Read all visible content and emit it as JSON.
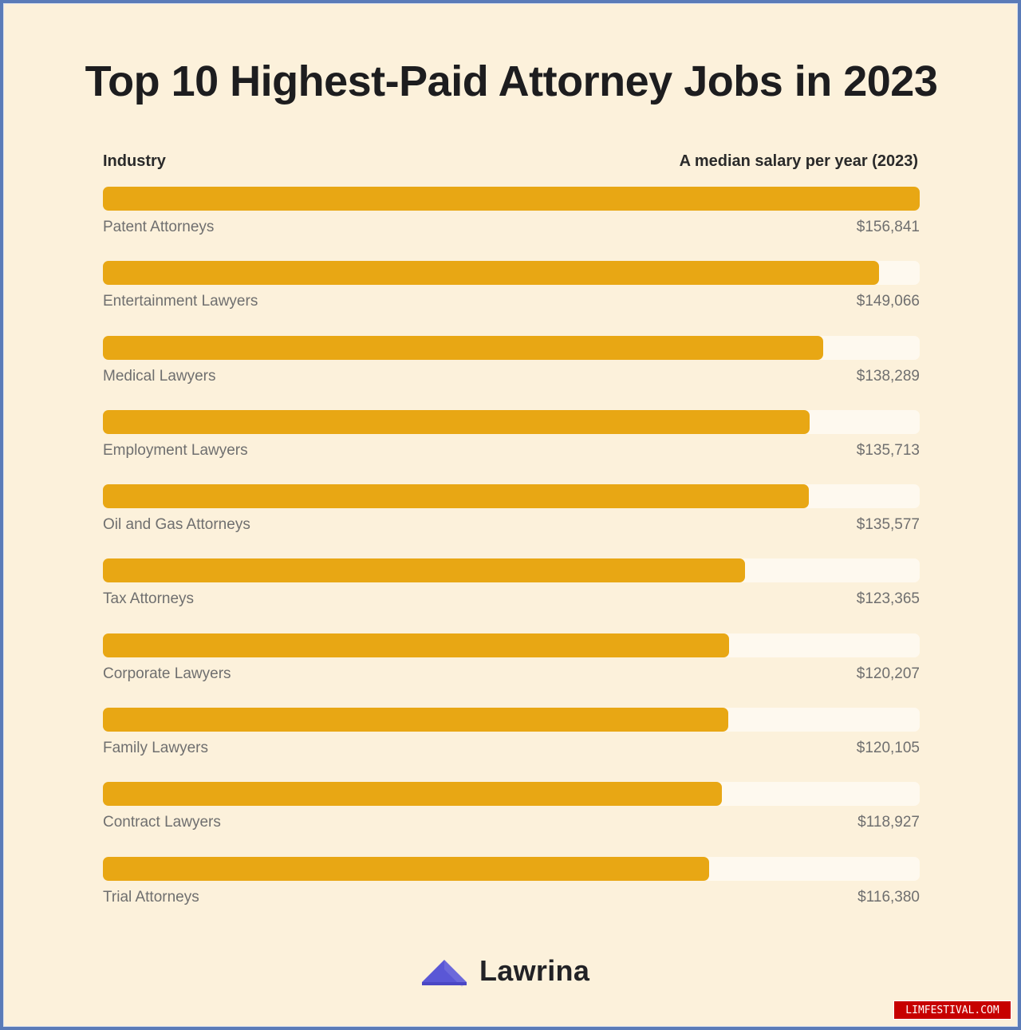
{
  "chart_data": {
    "type": "bar",
    "orientation": "horizontal",
    "title": "Top 10 Highest-Paid Attorney Jobs in 2023",
    "xlabel": "A median salary per year (2023)",
    "ylabel": "Industry",
    "categories": [
      "Patent Attorneys",
      "Entertainment Lawyers",
      "Medical Lawyers",
      "Employment Lawyers",
      "Oil and Gas Attorneys",
      "Tax Attorneys",
      "Corporate Lawyers",
      "Family Lawyers",
      "Contract Lawyers",
      "Trial Attorneys"
    ],
    "values": [
      156841,
      149066,
      138289,
      135713,
      135577,
      123365,
      120207,
      120105,
      118927,
      116380
    ],
    "value_labels": [
      "$156,841",
      "$149,066",
      "$138,289",
      "$135,713",
      "$135,577",
      "$123,365",
      "$120,207",
      "$120,105",
      "$118,927",
      "$116,380"
    ],
    "xlim": [
      0,
      156841
    ],
    "grid": false,
    "legend": "none",
    "colors": {
      "bar": "#e8a714",
      "track": "#fef9ef",
      "background": "#fcf1db"
    }
  },
  "brand": {
    "name": "Lawrina",
    "logo_icon": "triangle-logo-icon",
    "logo_color": "#5a57d6"
  },
  "watermark": {
    "text": "LIMFESTIVAL.COM"
  }
}
